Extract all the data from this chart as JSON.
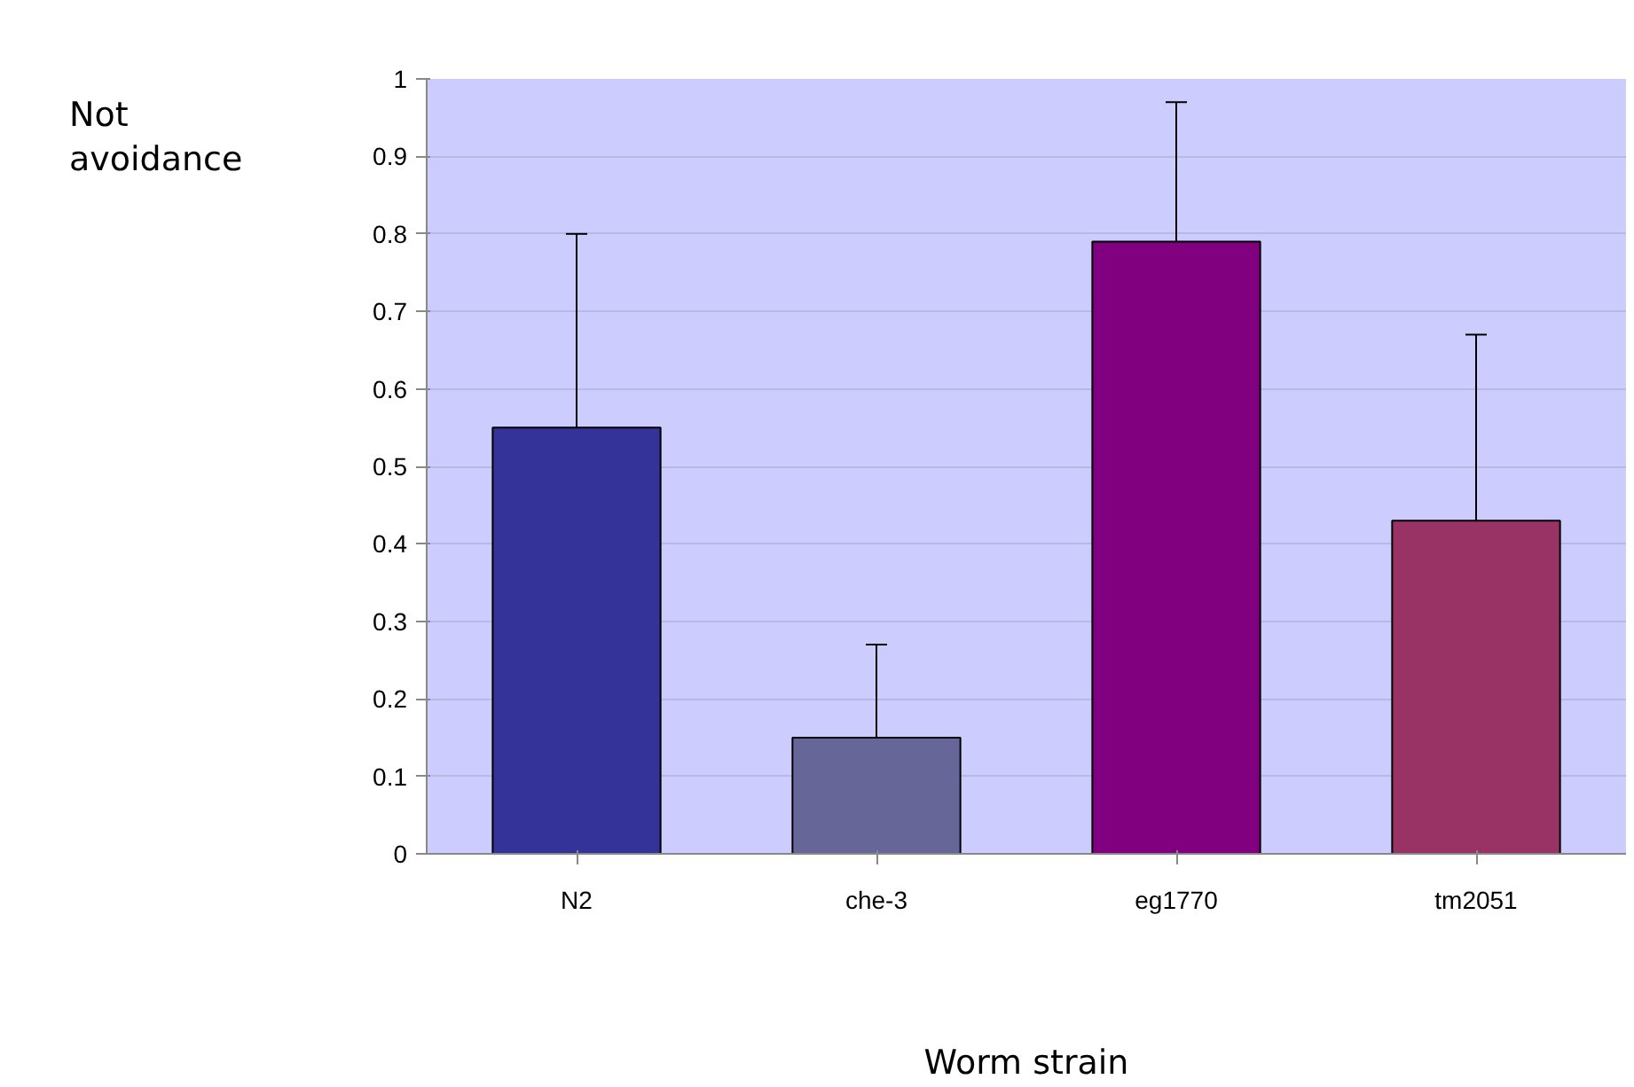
{
  "chart_data": {
    "type": "bar",
    "xlabel": "Worm strain",
    "ylabel": "Not avoidance",
    "categories": [
      "N2",
      "che-3",
      "eg1770",
      "tm2051"
    ],
    "values": [
      0.55,
      0.15,
      0.79,
      0.43
    ],
    "colors": [
      "#333399",
      "#666699",
      "#800080",
      "#993366"
    ],
    "errors": [
      [
        0.55,
        0.8
      ],
      [
        0.15,
        0.27
      ],
      [
        0.79,
        0.97
      ],
      [
        0.43,
        0.67
      ]
    ],
    "ylim": [
      0,
      1
    ],
    "yticks": [
      0,
      0.1,
      0.2,
      0.3,
      0.4,
      0.5,
      0.6,
      0.7,
      0.8,
      0.9,
      1
    ],
    "grid": "y"
  }
}
